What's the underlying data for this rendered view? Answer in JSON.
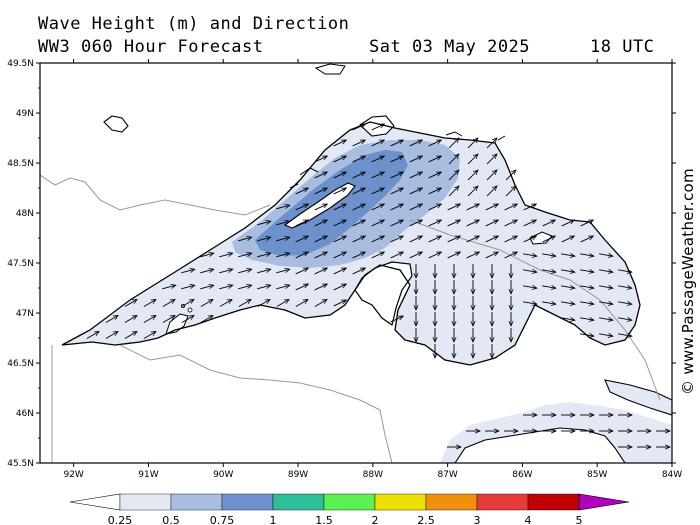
{
  "title": {
    "line1": "Wave Height (m) and Direction",
    "line2": "WW3 060 Hour Forecast",
    "date": "Sat 03 May 2025",
    "time": "18 UTC"
  },
  "credit": "© www.PassageWeather.com",
  "map": {
    "lat_ticks": [
      {
        "label": "49.5N",
        "value": 49.5
      },
      {
        "label": "49N",
        "value": 49.0
      },
      {
        "label": "48.5N",
        "value": 48.5
      },
      {
        "label": "48N",
        "value": 48.0
      },
      {
        "label": "47.5N",
        "value": 47.5
      },
      {
        "label": "47N",
        "value": 47.0
      },
      {
        "label": "46.5N",
        "value": 46.5
      },
      {
        "label": "46N",
        "value": 46.0
      },
      {
        "label": "45.5N",
        "value": 45.5
      }
    ],
    "lon_ticks": [
      {
        "label": "92W",
        "value": -92
      },
      {
        "label": "91W",
        "value": -91
      },
      {
        "label": "90W",
        "value": -90
      },
      {
        "label": "89W",
        "value": -89
      },
      {
        "label": "88W",
        "value": -88
      },
      {
        "label": "87W",
        "value": -87
      },
      {
        "label": "86W",
        "value": -86
      },
      {
        "label": "85W",
        "value": -85
      },
      {
        "label": "84W",
        "value": -84
      }
    ],
    "colors": {
      "land": "#ffffff",
      "coast": "#000000",
      "border": "#999999",
      "wave_025": "#e2e8f4",
      "wave_05": "#a8bde0",
      "wave_075": "#6d91cc",
      "arrow": "#000000"
    }
  },
  "colorbar": {
    "labels": [
      "0.25",
      "0.5",
      "0.75",
      "1",
      "1.5",
      "2",
      "2.5",
      "3",
      "4",
      "5"
    ],
    "colors": [
      "#ffffff",
      "#e2e8f4",
      "#a8bde0",
      "#6d91cc",
      "#2dbf9a",
      "#5cf050",
      "#f0e000",
      "#f0900c",
      "#e83c3c",
      "#c00000",
      "#b000c0"
    ]
  }
}
